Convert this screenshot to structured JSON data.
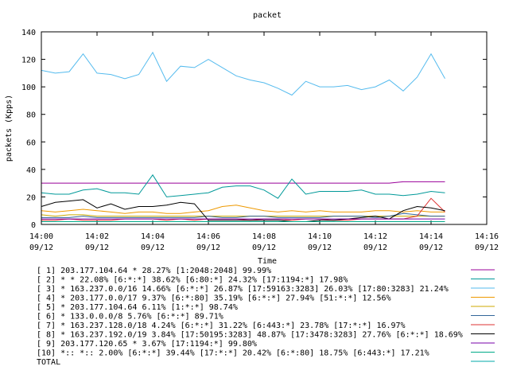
{
  "chart_data": {
    "type": "line",
    "title": "packet",
    "xlabel": "Time",
    "ylabel": "packets (Kpps)",
    "ylim": [
      0,
      140
    ],
    "yticks": [
      0,
      20,
      40,
      60,
      80,
      100,
      120,
      140
    ],
    "xlim": [
      "14:00",
      "14:16"
    ],
    "xticks": [
      {
        "time": "14:00",
        "date": "09/12"
      },
      {
        "time": "14:02",
        "date": "09/12"
      },
      {
        "time": "14:04",
        "date": "09/12"
      },
      {
        "time": "14:06",
        "date": "09/12"
      },
      {
        "time": "14:08",
        "date": "09/12"
      },
      {
        "time": "14:10",
        "date": "09/12"
      },
      {
        "time": "14:12",
        "date": "09/12"
      },
      {
        "time": "14:14",
        "date": "09/12"
      },
      {
        "time": "14:16",
        "date": "09/12"
      }
    ],
    "x": [
      "14:00",
      "14:00:30",
      "14:01",
      "14:01:30",
      "14:02",
      "14:02:30",
      "14:03",
      "14:03:30",
      "14:04",
      "14:04:30",
      "14:05",
      "14:05:30",
      "14:06",
      "14:06:30",
      "14:07",
      "14:07:30",
      "14:08",
      "14:08:30",
      "14:09",
      "14:09:30",
      "14:10",
      "14:10:30",
      "14:11",
      "14:11:30",
      "14:12",
      "14:12:30",
      "14:13",
      "14:13:30",
      "14:14",
      "14:14:30"
    ],
    "series": [
      {
        "legend": "[ 1] 203.177.104.64 * 28.27%  [1:2048:2048] 99.99%",
        "color": "#990099",
        "values": [
          30,
          30,
          30,
          30,
          30,
          30,
          30,
          30,
          30,
          30,
          30,
          30,
          30,
          30,
          30,
          30,
          30,
          30,
          30,
          30,
          30,
          30,
          30,
          30,
          30,
          30,
          31,
          31,
          31,
          31
        ]
      },
      {
        "legend": "[ 2] * * 22.08%  [6:*:*] 38.62% [6:80:*] 24.32% [17:1194:*] 17.98%",
        "color": "#009999",
        "values": [
          23,
          22,
          22,
          25,
          26,
          23,
          23,
          22,
          36,
          20,
          21,
          22,
          23,
          27,
          28,
          28,
          25,
          19,
          33,
          22,
          24,
          24,
          24,
          25,
          22,
          22,
          21,
          22,
          24,
          23
        ]
      },
      {
        "legend": "[ 3] * 163.237.0.0/16 14.66%  [6:*:*] 26.87% [17:59163:3283] 26.03% [17:80:3283] 21.24%",
        "color": "#55bbee",
        "values": [
          112,
          110,
          111,
          124,
          110,
          109,
          106,
          109,
          125,
          104,
          115,
          114,
          120,
          114,
          108,
          105,
          103,
          99,
          94,
          104,
          100,
          100,
          101,
          98,
          100,
          105,
          97,
          107,
          124,
          106
        ]
      },
      {
        "legend": "[ 4] * 203.177.0.0/17 9.37%  [6:*:80] 35.19% [6:*:*] 27.94% [51:*:*] 12.56%",
        "color": "#ee9900",
        "values": [
          10,
          9,
          10,
          11,
          10,
          9,
          8,
          9,
          9,
          8,
          8,
          9,
          10,
          13,
          14,
          12,
          10,
          9,
          10,
          9,
          10,
          9,
          9,
          9,
          10,
          10,
          9,
          10,
          9,
          9
        ]
      },
      {
        "legend": "[ 5] * 203.177.104.64 6.11%  [1:*:*] 98.74%",
        "color": "#ccaa00",
        "values": [
          7,
          6,
          7,
          7,
          6,
          6,
          6,
          6,
          6,
          6,
          6,
          6,
          6,
          6,
          6,
          6,
          6,
          6,
          6,
          6,
          6,
          6,
          6,
          6,
          6,
          6,
          6,
          6,
          6,
          6
        ]
      },
      {
        "legend": "[ 6] * 133.0.0.0/8 5.76%  [6:*:*] 89.71%",
        "color": "#336699",
        "values": [
          5,
          5,
          5,
          6,
          5,
          5,
          5,
          5,
          5,
          5,
          5,
          5,
          6,
          5,
          5,
          6,
          6,
          5,
          5,
          5,
          5,
          6,
          6,
          6,
          5,
          6,
          8,
          7,
          6,
          6
        ]
      },
      {
        "legend": "[ 7] * 163.237.128.0/18 4.24%  [6:*:*] 31.22% [6:443:*] 23.78% [17:*:*] 16.97%",
        "color": "#dd3333",
        "values": [
          3,
          3,
          4,
          3,
          3,
          3,
          4,
          4,
          4,
          3,
          4,
          3,
          4,
          4,
          4,
          3,
          4,
          4,
          3,
          4,
          4,
          3,
          3,
          4,
          4,
          4,
          4,
          6,
          19,
          9
        ]
      },
      {
        "legend": "[ 8] * 163.237.192.0/19 3.84%  [17:50195:3283] 48.87% [17:3478:3283] 27.76% [6:*:*] 18.69%",
        "color": "#000000",
        "values": [
          13,
          16,
          17,
          18,
          12,
          15,
          11,
          13,
          13,
          14,
          16,
          15,
          3,
          3,
          3,
          3,
          3,
          3,
          2,
          2,
          3,
          3,
          4,
          5,
          6,
          4,
          10,
          13,
          12,
          10
        ]
      },
      {
        "legend": "[ 9] 203.177.120.65 * 3.67%  [17:1194:*] 99.80%",
        "color": "#7700aa",
        "values": [
          4,
          4,
          4,
          4,
          4,
          4,
          4,
          4,
          4,
          4,
          4,
          4,
          4,
          4,
          4,
          4,
          4,
          4,
          4,
          4,
          4,
          4,
          4,
          4,
          4,
          4,
          4,
          4,
          4,
          4
        ]
      },
      {
        "legend": "[10] *:: *:: 2.00%  [6:*:*] 39.44% [17:*:*] 20.42% [6:*:80] 18.75% [6:443:*] 17.21%",
        "color": "#00aa88",
        "values": [
          2,
          2,
          2,
          2,
          2,
          2,
          2,
          2,
          2,
          2,
          2,
          2,
          2,
          2,
          2,
          2,
          2,
          2,
          2,
          2,
          2,
          2,
          2,
          2,
          2,
          2,
          2,
          2,
          2,
          2
        ]
      }
    ],
    "total_legend": "TOTAL",
    "total_color": "#00aaaa"
  }
}
